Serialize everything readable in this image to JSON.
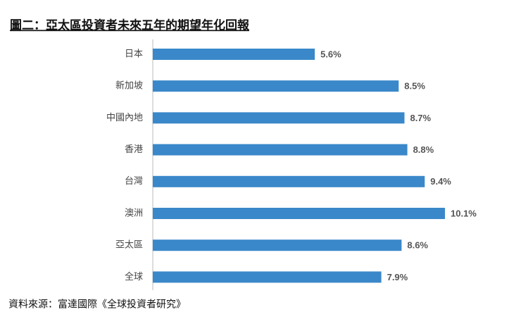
{
  "chart_data": {
    "type": "bar",
    "orientation": "horizontal",
    "title": "圖二：亞太區投資者未來五年的期望年化回報",
    "categories": [
      "日本",
      "新加坡",
      "中國內地",
      "香港",
      "台灣",
      "澳洲",
      "亞太區",
      "全球"
    ],
    "values": [
      5.6,
      8.5,
      8.7,
      8.8,
      9.4,
      10.1,
      8.6,
      7.9
    ],
    "value_labels": [
      "5.6%",
      "8.5%",
      "8.7%",
      "8.8%",
      "9.4%",
      "10.1%",
      "8.6%",
      "7.9%"
    ],
    "color": "#3a88c9",
    "source": "資料來源：富達國際《全球投資者研究》"
  }
}
